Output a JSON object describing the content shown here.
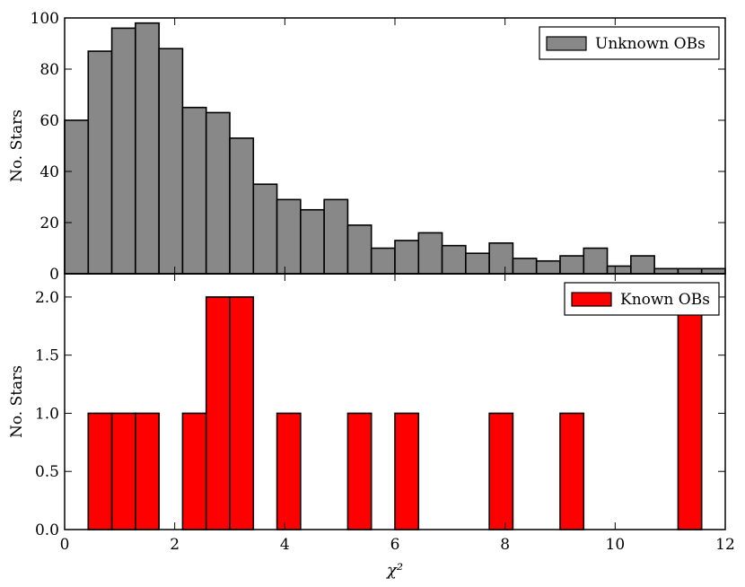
{
  "chart_data": [
    {
      "type": "bar",
      "panel": "top",
      "ylabel": "No. Stars",
      "xlim": [
        0,
        12
      ],
      "ylim": [
        0,
        100
      ],
      "yticks": [
        0,
        20,
        40,
        60,
        80,
        100
      ],
      "legend": {
        "label": "Unknown OBs",
        "position": "top-right"
      },
      "color": "#888888",
      "bin_edges": [
        0,
        0.4286,
        0.8571,
        1.2857,
        1.7143,
        2.1429,
        2.5714,
        3.0,
        3.4286,
        3.8571,
        4.2857,
        4.7143,
        5.1429,
        5.5714,
        6.0,
        6.4286,
        6.8571,
        7.2857,
        7.7143,
        8.1429,
        8.5714,
        9.0,
        9.4286,
        9.8571,
        10.2857,
        10.7143,
        11.1429,
        11.5714,
        12.0
      ],
      "values": [
        60,
        87,
        96,
        98,
        88,
        65,
        63,
        53,
        35,
        29,
        25,
        29,
        19,
        10,
        13,
        16,
        11,
        8,
        12,
        6,
        5,
        7,
        10,
        3,
        7,
        2,
        2,
        2
      ]
    },
    {
      "type": "bar",
      "panel": "bottom",
      "xlabel": "χ²",
      "ylabel": "No. Stars",
      "xlim": [
        0,
        12
      ],
      "ylim": [
        0,
        2.2
      ],
      "xticks": [
        0,
        2,
        4,
        6,
        8,
        10,
        12
      ],
      "yticks": [
        "0.0",
        "0.5",
        "1.0",
        "1.5",
        "2.0"
      ],
      "legend": {
        "label": "Known OBs",
        "position": "top-right"
      },
      "color": "#ff0000",
      "bars": [
        {
          "x0": 0.4286,
          "x1": 0.8571,
          "value": 1
        },
        {
          "x0": 0.8571,
          "x1": 1.2857,
          "value": 1
        },
        {
          "x0": 1.2857,
          "x1": 1.7143,
          "value": 1
        },
        {
          "x0": 2.1429,
          "x1": 2.5714,
          "value": 1
        },
        {
          "x0": 2.5714,
          "x1": 3.0,
          "value": 2
        },
        {
          "x0": 3.0,
          "x1": 3.4286,
          "value": 2
        },
        {
          "x0": 3.8571,
          "x1": 4.2857,
          "value": 1
        },
        {
          "x0": 5.1429,
          "x1": 5.5714,
          "value": 1
        },
        {
          "x0": 6.0,
          "x1": 6.4286,
          "value": 1
        },
        {
          "x0": 7.7143,
          "x1": 8.1429,
          "value": 1
        },
        {
          "x0": 9.0,
          "x1": 9.4286,
          "value": 1
        },
        {
          "x0": 11.1429,
          "x1": 11.5714,
          "value": 2
        }
      ]
    }
  ]
}
